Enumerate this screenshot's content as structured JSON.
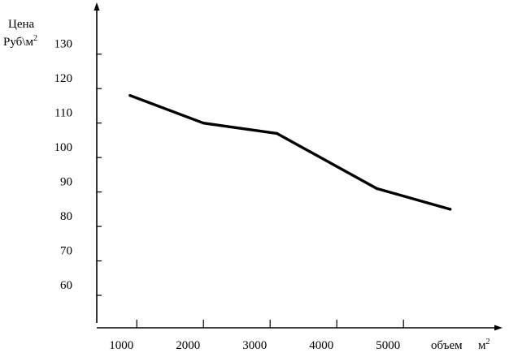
{
  "chart_data": {
    "type": "line",
    "title": "",
    "ylabel_line1": "Цена",
    "ylabel_line2": "Руб\\м",
    "ylabel_sup": "2",
    "xlabel": "объем",
    "xlabel_unit": "м",
    "xlabel_sup": "2",
    "y_ticks": [
      60,
      70,
      80,
      90,
      100,
      110,
      120,
      130
    ],
    "x_ticks": [
      1000,
      2000,
      3000,
      4000,
      5000
    ],
    "ylim": [
      52,
      133
    ],
    "xlim": [
      400,
      6400
    ],
    "grid": false,
    "legend": "none",
    "series": [
      {
        "x": [
          900,
          2000,
          3100,
          4600,
          5700
        ],
        "y": [
          118,
          110,
          107,
          91,
          85
        ]
      }
    ],
    "colors": {
      "line": "#000000",
      "axis": "#000000"
    }
  }
}
